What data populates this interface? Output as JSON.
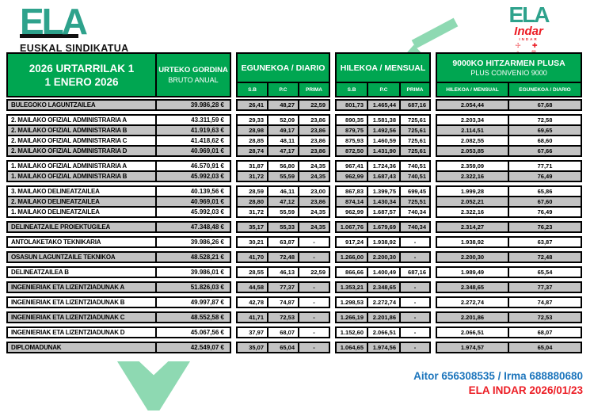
{
  "page": {
    "left_logo": {
      "wordmark": "ELA",
      "subtitle": "EUSKAL SINDIKATUA"
    },
    "right_logo": {
      "wordmark": "ELA",
      "sub_wordmark": "Indar",
      "sub_small": "INDAR",
      "symbol_rows": [
        "☩ ✚",
        "⌂ ♛",
        "♟ † ▦"
      ]
    },
    "colors": {
      "green": "#00A651",
      "teal": "#2EA28C",
      "mint": "#8ED9B2",
      "row_gray": "#C3C3C3",
      "footer_blue": "#1C75BC",
      "footer_red": "#EC1C24"
    }
  },
  "header": {
    "date_eu": "2026 URTARRILAK 1",
    "date_es": "1 ENERO 2026",
    "annual_eu": "URTEKO GORDINA",
    "annual_es": "BRUTO ANUAL",
    "daily_title": "EGUNEKOA / DIARIO",
    "monthly_title": "HILEKOA / MENSUAL",
    "plus_eu": "9000KO HITZARMEN PLUSA",
    "plus_es": "PLUS CONVENIO 9000",
    "subcols": [
      "S.B",
      "P.C",
      "PRIMA"
    ],
    "plus_subcols": [
      "HILEKOA / MENSUAL",
      "EGUNEKOA / DIARIO"
    ]
  },
  "table": {
    "groups": [
      {
        "rows": [
          {
            "name": "BULEGOKO LAGUNTZAILEA",
            "annual": "39.986,28 €",
            "daily": [
              "26,41",
              "48,27",
              "22,59"
            ],
            "monthly": [
              "801,73",
              "1.465,44",
              "687,16"
            ],
            "plus": [
              "2.054,44",
              "67,68"
            ],
            "shaded": true
          }
        ]
      },
      {
        "rows": [
          {
            "name": "2. MAILAKO OFIZIAL ADMINISTRARIA A",
            "annual": "43.311,59 €",
            "daily": [
              "29,33",
              "52,09",
              "23,86"
            ],
            "monthly": [
              "890,35",
              "1.581,38",
              "725,61"
            ],
            "plus": [
              "2.203,34",
              "72,58"
            ],
            "shaded": false
          },
          {
            "name": "2. MAILAKO OFIZIAL ADMINISTRARIA B",
            "annual": "41.919,63 €",
            "daily": [
              "28,98",
              "49,17",
              "23,86"
            ],
            "monthly": [
              "879,75",
              "1.492,56",
              "725,61"
            ],
            "plus": [
              "2.114,51",
              "69,65"
            ],
            "shaded": true
          },
          {
            "name": "2. MAILAKO OFIZIAL ADMINISTRARIA C",
            "annual": "41.418,62 €",
            "daily": [
              "28,85",
              "48,11",
              "23,86"
            ],
            "monthly": [
              "875,93",
              "1.460,59",
              "725,61"
            ],
            "plus": [
              "2.082,55",
              "68,60"
            ],
            "shaded": false
          },
          {
            "name": "2. MAILAKO OFIZIAL ADMINISTRARIA D",
            "annual": "40.969,01 €",
            "daily": [
              "28,74",
              "47,17",
              "23,86"
            ],
            "monthly": [
              "872,50",
              "1.431,90",
              "725,61"
            ],
            "plus": [
              "2.053,85",
              "67,66"
            ],
            "shaded": true
          }
        ]
      },
      {
        "rows": [
          {
            "name": "1. MAILAKO OFIZIAL ADMINISTRARIA A",
            "annual": "46.570,91 €",
            "daily": [
              "31,87",
              "56,80",
              "24,35"
            ],
            "monthly": [
              "967,41",
              "1.724,36",
              "740,51"
            ],
            "plus": [
              "2.359,09",
              "77,71"
            ],
            "shaded": false
          },
          {
            "name": "1. MAILAKO OFIZIAL ADMINISTRARIA B",
            "annual": "45.992,03 €",
            "daily": [
              "31,72",
              "55,59",
              "24,35"
            ],
            "monthly": [
              "962,99",
              "1.687,43",
              "740,51"
            ],
            "plus": [
              "2.322,16",
              "76,49"
            ],
            "shaded": true
          }
        ]
      },
      {
        "rows": [
          {
            "name": "3. MAILAKO DELINEATZAILEA",
            "annual": "40.139,56 €",
            "daily": [
              "28,59",
              "46,11",
              "23,00"
            ],
            "monthly": [
              "867,83",
              "1.399,75",
              "699,45"
            ],
            "plus": [
              "1.999,28",
              "65,86"
            ],
            "shaded": false
          },
          {
            "name": "2. MAILAKO DELINEATZAILEA",
            "annual": "40.969,01 €",
            "daily": [
              "28,80",
              "47,12",
              "23,86"
            ],
            "monthly": [
              "874,14",
              "1.430,34",
              "725,51"
            ],
            "plus": [
              "2.052,21",
              "67,60"
            ],
            "shaded": true
          },
          {
            "name": "1. MAILAKO DELINEATZAILEA",
            "annual": "45.992,03 €",
            "daily": [
              "31,72",
              "55,59",
              "24,35"
            ],
            "monthly": [
              "962,99",
              "1.687,57",
              "740,34"
            ],
            "plus": [
              "2.322,16",
              "76,49"
            ],
            "shaded": false
          }
        ]
      },
      {
        "rows": [
          {
            "name": "DELINEATZAILE PROIEKTUGILEA",
            "annual": "47.348,48 €",
            "daily": [
              "35,17",
              "55,33",
              "24,35"
            ],
            "monthly": [
              "1.067,76",
              "1.679,69",
              "740,34"
            ],
            "plus": [
              "2.314,27",
              "76,23"
            ],
            "shaded": true
          }
        ]
      },
      {
        "rows": [
          {
            "name": "ANTOLAKETAKO TEKNIKARIA",
            "annual": "39.986,26 €",
            "daily": [
              "30,21",
              "63,87",
              "-"
            ],
            "monthly": [
              "917,24",
              "1.938,92",
              "-"
            ],
            "plus": [
              "1.938,92",
              "63,87"
            ],
            "shaded": false
          }
        ]
      },
      {
        "rows": [
          {
            "name": "OSASUN LAGUNTZAILE TEKNIKOA",
            "annual": "48.528,21 €",
            "daily": [
              "41,70",
              "72,48",
              "-"
            ],
            "monthly": [
              "1.266,00",
              "2.200,30",
              "-"
            ],
            "plus": [
              "2.200,30",
              "72,48"
            ],
            "shaded": true
          }
        ]
      },
      {
        "rows": [
          {
            "name": "DELINEATZAILEA B",
            "annual": "39.986,01 €",
            "daily": [
              "28,55",
              "46,13",
              "22,59"
            ],
            "monthly": [
              "866,66",
              "1.400,49",
              "687,16"
            ],
            "plus": [
              "1.989,49",
              "65,54"
            ],
            "shaded": false
          }
        ]
      },
      {
        "rows": [
          {
            "name": "INGENIERIAK ETA LIZENTZIADUNAK A",
            "annual": "51.826,03 €",
            "daily": [
              "44,58",
              "77,37",
              "-"
            ],
            "monthly": [
              "1.353,21",
              "2.348,65",
              "-"
            ],
            "plus": [
              "2.348,65",
              "77,37"
            ],
            "shaded": true
          }
        ]
      },
      {
        "rows": [
          {
            "name": "INGENIERIAK ETA LIZENTZIADUNAK B",
            "annual": "49.997,87 €",
            "daily": [
              "42,78",
              "74,87",
              "-"
            ],
            "monthly": [
              "1.298,53",
              "2.272,74",
              "-"
            ],
            "plus": [
              "2.272,74",
              "74,87"
            ],
            "shaded": false
          }
        ]
      },
      {
        "rows": [
          {
            "name": "INGENIERIAK ETA LIZENTZIADUNAK C",
            "annual": "48.552,58 €",
            "daily": [
              "41,71",
              "72,53",
              "-"
            ],
            "monthly": [
              "1.266,19",
              "2.201,86",
              "-"
            ],
            "plus": [
              "2.201,86",
              "72,53"
            ],
            "shaded": true
          }
        ]
      },
      {
        "rows": [
          {
            "name": "INGENIERIAK ETA LIZENTZIADUNAK D",
            "annual": "45.067,56 €",
            "daily": [
              "37,97",
              "68,07",
              "-"
            ],
            "monthly": [
              "1.152,60",
              "2.066,51",
              "-"
            ],
            "plus": [
              "2.066,51",
              "68,07"
            ],
            "shaded": false
          }
        ]
      },
      {
        "rows": [
          {
            "name": "DIPLOMADUNAK",
            "annual": "42.549,07 €",
            "daily": [
              "35,07",
              "65,04",
              "-"
            ],
            "monthly": [
              "1.064,65",
              "1.974,56",
              "-"
            ],
            "plus": [
              "1.974,57",
              "65,04"
            ],
            "shaded": true
          }
        ]
      }
    ]
  },
  "footer": {
    "contacts": "Aitor 656308535 / Irma 688880680",
    "edition": "ELA INDAR 2026/01/23"
  }
}
